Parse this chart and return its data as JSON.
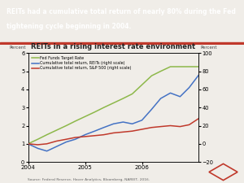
{
  "title": "REITs in a rising interest rate environment",
  "header_line1": "REITs had a cumulative total return of nearly 80% during the Fed",
  "header_line2": "tightening cycle beginning in 2004.",
  "xlabel_left": "Percent",
  "xlabel_right": "Percent",
  "source": "Source: Federal Reserve, Haver Analytics, Bloomberg, NAREIT, 2016.",
  "left_ylim": [
    0,
    6
  ],
  "right_ylim": [
    -20,
    100
  ],
  "left_yticks": [
    0,
    1,
    2,
    3,
    4,
    5,
    6
  ],
  "right_yticks": [
    -20,
    0,
    20,
    40,
    60,
    80,
    100
  ],
  "fed_funds": {
    "x": [
      2004.0,
      2004.17,
      2004.33,
      2004.5,
      2004.67,
      2004.83,
      2005.0,
      2005.17,
      2005.33,
      2005.5,
      2005.67,
      2005.83,
      2006.0,
      2006.17,
      2006.33,
      2006.5,
      2006.67,
      2006.83,
      2007.0
    ],
    "y": [
      1.0,
      1.25,
      1.5,
      1.75,
      2.0,
      2.25,
      2.5,
      2.75,
      3.0,
      3.25,
      3.5,
      3.75,
      4.25,
      4.75,
      5.0,
      5.25,
      5.25,
      5.25,
      5.25
    ],
    "color": "#8db84a",
    "label": "Fed Funds Target Rate"
  },
  "reit_return": {
    "x": [
      2004.0,
      2004.17,
      2004.33,
      2004.5,
      2004.67,
      2004.83,
      2005.0,
      2005.17,
      2005.33,
      2005.5,
      2005.67,
      2005.83,
      2006.0,
      2006.17,
      2006.33,
      2006.5,
      2006.67,
      2006.83,
      2007.0
    ],
    "y": [
      0.0,
      -5.0,
      -8.0,
      -3.0,
      2.0,
      5.0,
      10.0,
      14.0,
      18.0,
      22.0,
      24.0,
      22.0,
      26.0,
      38.0,
      50.0,
      56.0,
      52.0,
      62.0,
      76.0
    ],
    "color": "#4472c4",
    "label": "Cumulative total return, REITs (right scale)"
  },
  "sp500_return": {
    "x": [
      2004.0,
      2004.17,
      2004.33,
      2004.5,
      2004.67,
      2004.83,
      2005.0,
      2005.17,
      2005.33,
      2005.5,
      2005.67,
      2005.83,
      2006.0,
      2006.17,
      2006.33,
      2006.5,
      2006.67,
      2006.83,
      2007.0
    ],
    "y": [
      0.0,
      -1.0,
      0.0,
      3.0,
      5.0,
      7.0,
      8.0,
      9.0,
      10.0,
      12.0,
      13.0,
      14.0,
      16.0,
      18.0,
      19.0,
      20.0,
      19.0,
      21.0,
      28.0
    ],
    "color": "#c0392b",
    "label": "Cumulative total return, S&P 500 (right scale)"
  },
  "bg_color": "#f0ede8",
  "header_bg": "#3a8bbf",
  "header_text_color": "#ffffff",
  "plot_bg": "#f0ede8",
  "header_stripe_color": "#c0392b",
  "diamond_color": "#c0392b"
}
